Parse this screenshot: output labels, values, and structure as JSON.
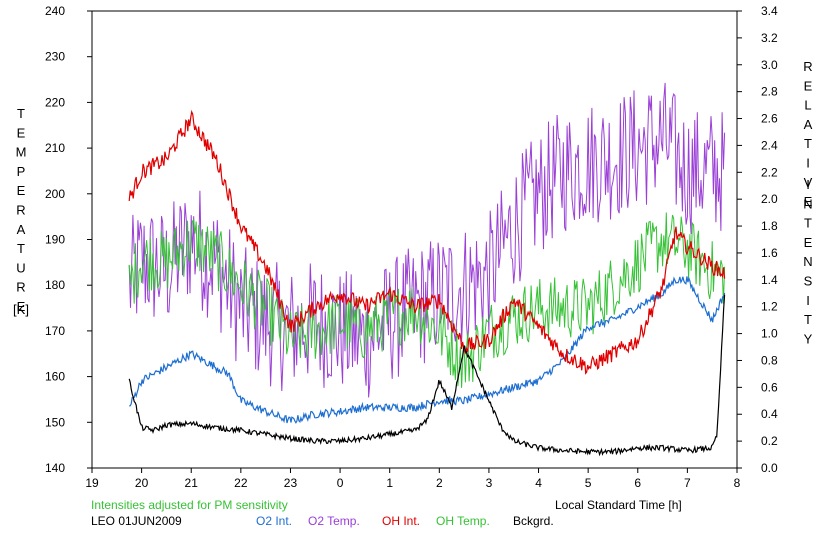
{
  "chart_data": {
    "type": "line",
    "xlabel": "Local Standard Time [h]",
    "x_ticks": [
      "19",
      "20",
      "21",
      "22",
      "23",
      "0",
      "1",
      "2",
      "3",
      "4",
      "5",
      "6",
      "7",
      "8"
    ],
    "x_range": [
      19,
      32
    ],
    "left_axis": {
      "label_chars": [
        "T",
        "E",
        "M",
        "P",
        "E",
        "R",
        "A",
        "T",
        "U",
        "R",
        "E"
      ],
      "unit": "[K]",
      "range": [
        140,
        240
      ],
      "ticks": [
        "140",
        "150",
        "160",
        "170",
        "180",
        "190",
        "200",
        "210",
        "220",
        "230",
        "240"
      ]
    },
    "right_axis": {
      "label_chars": [
        "R",
        "E",
        "L",
        "A",
        "T",
        "I",
        "V",
        "E"
      ],
      "label_chars2": [
        "I",
        "N",
        "T",
        "E",
        "N",
        "S",
        "I",
        "T",
        "Y"
      ],
      "range": [
        0.0,
        3.4
      ],
      "ticks": [
        "0.0",
        "0.2",
        "0.4",
        "0.6",
        "0.8",
        "1.0",
        "1.2",
        "1.4",
        "1.6",
        "1.8",
        "2.0",
        "2.2",
        "2.4",
        "2.6",
        "2.8",
        "3.0",
        "3.2",
        "3.4"
      ]
    },
    "note": "Intensities adjusted for PM sensitivity",
    "station": "LEO 01JUN2009",
    "grid": false,
    "series": [
      {
        "name": "O2 Int.",
        "axis": "right",
        "color": "#1f6fd1",
        "x": [
          19.75,
          20.0,
          20.5,
          21.0,
          21.5,
          21.75,
          22.0,
          22.5,
          23.0,
          23.5,
          24.0,
          24.5,
          25.0,
          25.5,
          26.0,
          26.5,
          27.0,
          27.5,
          28.0,
          28.5,
          29.0,
          29.5,
          30.0,
          30.5,
          30.75,
          31.0,
          31.5,
          31.75
        ],
        "y": [
          0.45,
          0.65,
          0.75,
          0.85,
          0.75,
          0.7,
          0.5,
          0.42,
          0.35,
          0.4,
          0.42,
          0.45,
          0.45,
          0.45,
          0.5,
          0.5,
          0.55,
          0.6,
          0.65,
          0.8,
          1.05,
          1.1,
          1.2,
          1.3,
          1.4,
          1.4,
          1.1,
          1.3
        ]
      },
      {
        "name": "O2 Temp.",
        "axis": "left",
        "color": "#9b40d6",
        "x": [
          19.75,
          20.0,
          20.5,
          21.0,
          21.5,
          22.0,
          22.5,
          23.0,
          23.5,
          24.0,
          24.5,
          25.0,
          25.5,
          26.0,
          26.5,
          27.0,
          27.5,
          28.0,
          28.5,
          29.0,
          29.5,
          30.0,
          30.5,
          31.0,
          31.5,
          31.75
        ],
        "y": [
          180,
          185,
          183,
          190,
          185,
          175,
          172,
          170,
          172,
          170,
          168,
          172,
          175,
          178,
          180,
          182,
          193,
          200,
          205,
          207,
          208,
          210,
          212,
          205,
          205,
          205
        ]
      },
      {
        "name": "OH Int.",
        "axis": "right",
        "color": "#e00000",
        "x": [
          19.75,
          20.0,
          20.5,
          21.0,
          21.5,
          22.0,
          22.5,
          23.0,
          23.5,
          24.0,
          24.5,
          25.0,
          25.5,
          26.0,
          26.5,
          27.0,
          27.5,
          28.0,
          28.5,
          29.0,
          29.5,
          30.0,
          30.5,
          30.75,
          31.0,
          31.5,
          31.75
        ],
        "y": [
          2.0,
          2.2,
          2.3,
          2.6,
          2.3,
          1.8,
          1.5,
          1.05,
          1.2,
          1.3,
          1.2,
          1.3,
          1.2,
          1.25,
          0.9,
          0.95,
          1.25,
          1.05,
          0.85,
          0.75,
          0.85,
          0.95,
          1.35,
          1.75,
          1.65,
          1.5,
          1.45
        ]
      },
      {
        "name": "OH Temp.",
        "axis": "left",
        "color": "#36c236",
        "x": [
          19.75,
          20.0,
          20.5,
          21.0,
          21.5,
          22.0,
          22.5,
          23.0,
          23.5,
          24.0,
          24.5,
          25.0,
          25.5,
          26.0,
          26.5,
          27.0,
          27.5,
          28.0,
          28.5,
          29.0,
          29.5,
          30.0,
          30.5,
          31.0,
          31.5,
          31.75
        ],
        "y": [
          180,
          186,
          185,
          190,
          186,
          180,
          175,
          168,
          170,
          172,
          170,
          173,
          175,
          170,
          163,
          170,
          173,
          175,
          175,
          175,
          180,
          185,
          190,
          188,
          183,
          182
        ]
      },
      {
        "name": "Bckgrd.",
        "axis": "right",
        "color": "#000000",
        "x": [
          19.75,
          20.0,
          20.25,
          20.5,
          21.0,
          21.5,
          22.0,
          22.5,
          23.0,
          23.5,
          24.0,
          24.5,
          25.0,
          25.5,
          25.75,
          26.0,
          26.25,
          26.5,
          26.75,
          27.0,
          27.25,
          27.5,
          28.0,
          28.5,
          29.0,
          29.5,
          30.0,
          30.5,
          31.0,
          31.5,
          31.6,
          31.75
        ],
        "y": [
          0.65,
          0.3,
          0.28,
          0.32,
          0.33,
          0.3,
          0.28,
          0.25,
          0.22,
          0.2,
          0.2,
          0.22,
          0.25,
          0.28,
          0.35,
          0.65,
          0.45,
          0.9,
          0.7,
          0.5,
          0.3,
          0.2,
          0.15,
          0.13,
          0.12,
          0.12,
          0.15,
          0.15,
          0.13,
          0.15,
          0.25,
          1.3
        ]
      }
    ]
  }
}
